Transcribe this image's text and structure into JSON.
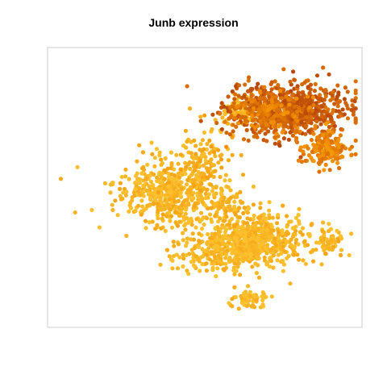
{
  "chart_data": {
    "type": "scatter",
    "title": "Junb expression",
    "xlabel": "",
    "ylabel": "",
    "axes_visible": false,
    "grid": false,
    "legend": "none",
    "color_scale": {
      "low": "#FBC02D",
      "mid": "#F28C00",
      "high": "#B8470B"
    },
    "points_per_cluster_note": "",
    "clusters": [
      {
        "name": "",
        "center": [
          38,
          52
        ],
        "spread": [
          14,
          10
        ],
        "count": 520,
        "expression": 0.1
      },
      {
        "name": "",
        "center": [
          50,
          40
        ],
        "spread": [
          7,
          9
        ],
        "count": 110,
        "expression": 0.15
      },
      {
        "name": "",
        "center": [
          48,
          74
        ],
        "spread": [
          9,
          5
        ],
        "count": 80,
        "expression": 0.05
      },
      {
        "name": "",
        "center": [
          57,
          57
        ],
        "spread": [
          5,
          5
        ],
        "count": 60,
        "expression": 0.1
      },
      {
        "name": "",
        "center": [
          66,
          68
        ],
        "spread": [
          14,
          8
        ],
        "count": 520,
        "expression": 0.08
      },
      {
        "name": "",
        "center": [
          62,
          72
        ],
        "spread": [
          9,
          6
        ],
        "count": 160,
        "expression": 0.05
      },
      {
        "name": "",
        "center": [
          90,
          69
        ],
        "spread": [
          4,
          5
        ],
        "count": 60,
        "expression": 0.1
      },
      {
        "name": "",
        "center": [
          64,
          90
        ],
        "spread": [
          5,
          3
        ],
        "count": 60,
        "expression": 0.05
      },
      {
        "name": "",
        "center": [
          61,
          23
        ],
        "spread": [
          4,
          4
        ],
        "count": 70,
        "expression": 0.02
      },
      {
        "name": "",
        "center": [
          77,
          22
        ],
        "spread": [
          16,
          8
        ],
        "count": 700,
        "expression": 0.85
      },
      {
        "name": "",
        "center": [
          71,
          24
        ],
        "spread": [
          10,
          6
        ],
        "count": 180,
        "expression": 0.6
      },
      {
        "name": "",
        "center": [
          89,
          36
        ],
        "spread": [
          6,
          5
        ],
        "count": 180,
        "expression": 0.55
      }
    ],
    "xlim": [
      0,
      100
    ],
    "ylim": [
      0,
      100
    ]
  }
}
